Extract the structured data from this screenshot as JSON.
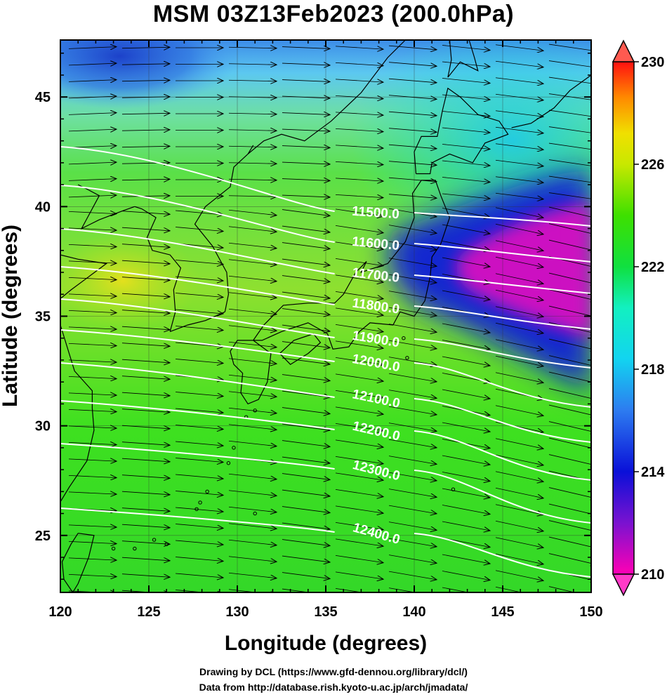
{
  "title": "MSM 03Z13Feb2023 (200.0hPa)",
  "map": {
    "xlabel": "Longitude (degrees)",
    "ylabel": "Latitude  (degrees)",
    "xlim": [
      120,
      150
    ],
    "ylim": [
      22.4,
      47.6
    ],
    "xticks": [
      120,
      125,
      130,
      135,
      140,
      145,
      150
    ],
    "yticks": [
      25,
      30,
      35,
      40,
      45
    ],
    "colorbar": {
      "ticks": [
        "230",
        "226",
        "222",
        "218",
        "214",
        "210"
      ],
      "range": [
        210,
        230
      ]
    },
    "contours": [
      {
        "label": "11500.0"
      },
      {
        "label": "11600.0"
      },
      {
        "label": "11700.0"
      },
      {
        "label": "11800.0"
      },
      {
        "label": "11900.0"
      },
      {
        "label": "12000.0"
      },
      {
        "label": "12100.0"
      },
      {
        "label": "12200.0"
      },
      {
        "label": "12300.0"
      },
      {
        "label": "12400.0"
      }
    ]
  },
  "credits": {
    "line1": "Drawing by DCL (https://www.gfd-dennou.org/library/dcl/)",
    "line2": "Data from http://database.rish.kyoto-u.ac.jp/arch/jmadata/"
  }
}
